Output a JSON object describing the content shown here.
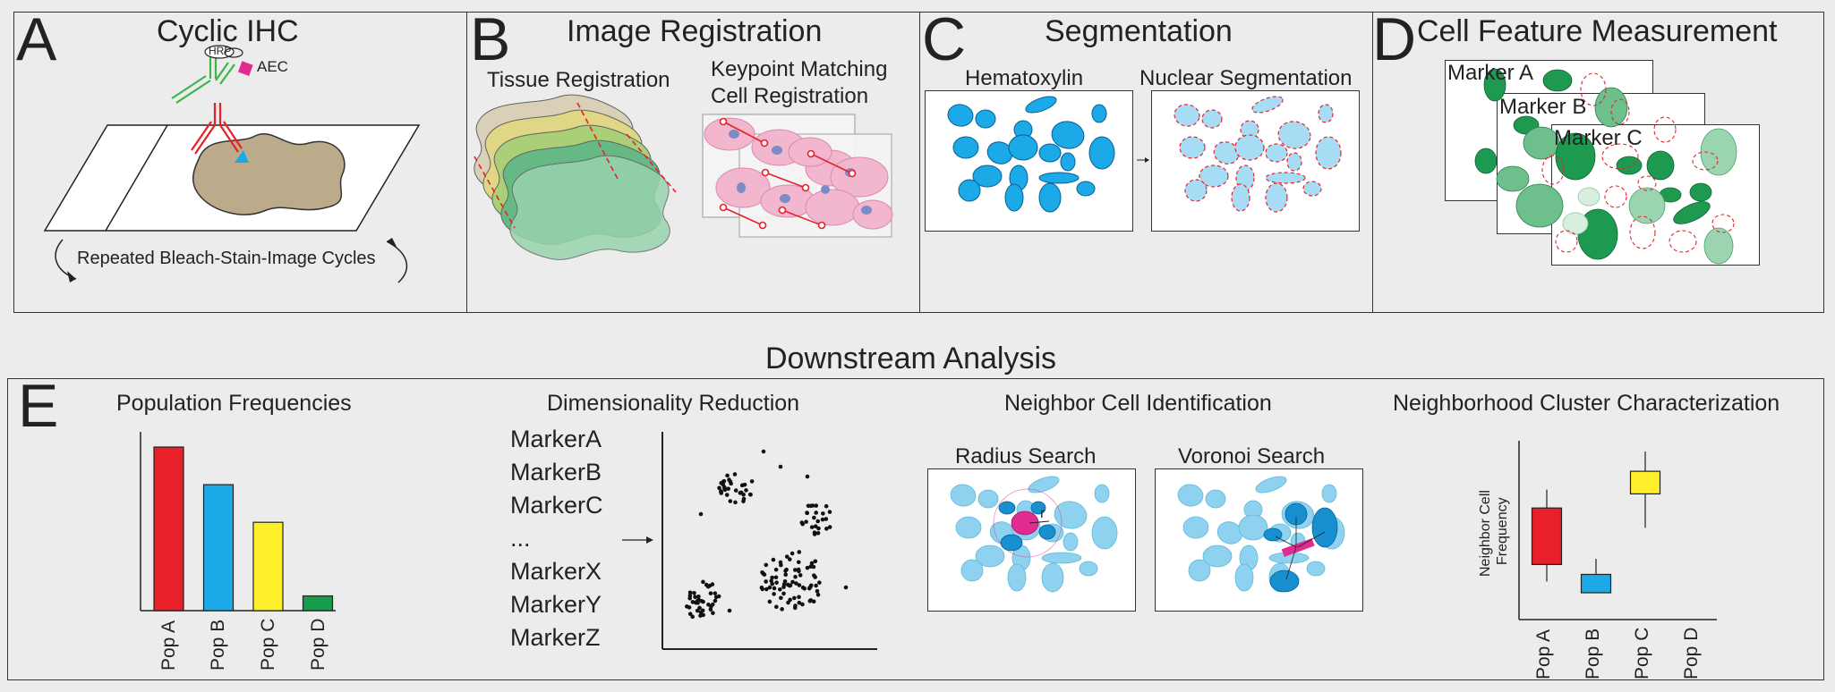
{
  "panel_a": {
    "letter": "A",
    "title": "Cyclic IHC",
    "hrp": "HRP",
    "aec": "AEC",
    "caption": "Repeated Bleach-Stain-Image Cycles"
  },
  "panel_b": {
    "letter": "B",
    "title": "Image Registration",
    "left_label": "Tissue Registration",
    "right_label_1": "Keypoint Matching",
    "right_label_2": "Cell Registration"
  },
  "panel_c": {
    "letter": "C",
    "title": "Segmentation",
    "left_label": "Hematoxylin",
    "right_label": "Nuclear Segmentation"
  },
  "panel_d": {
    "letter": "D",
    "title": "Cell Feature Measurement",
    "marker_a": "Marker A",
    "marker_b": "Marker B",
    "marker_c": "Marker C"
  },
  "downstream_title": "Downstream Analysis",
  "panel_e": {
    "letter": "E",
    "pop_freq": {
      "title": "Population Frequencies",
      "chart_data": {
        "type": "bar",
        "title": "Population Frequencies",
        "categories": [
          "Pop A",
          "Pop B",
          "Pop C",
          "Pop D"
        ],
        "values": [
          1.0,
          0.77,
          0.54,
          0.09
        ],
        "colors": [
          "#e8202a",
          "#1ba9e8",
          "#ffef2a",
          "#179c4b"
        ],
        "grid": false
      }
    },
    "dim_red": {
      "title": "Dimensionality Reduction",
      "markers": [
        "MarkerA",
        "MarkerB",
        "MarkerC",
        "...",
        "MarkerX",
        "MarkerY",
        "MarkerZ"
      ]
    },
    "neighbor": {
      "title": "Neighbor Cell Identification",
      "radius_label": "Radius Search",
      "voronoi_label": "Voronoi Search",
      "r_label": "r"
    },
    "cluster": {
      "title": "Neighborhood Cluster Characterization",
      "ylabel_1": "Neighbor Cell",
      "ylabel_2": "Frequency",
      "chart_data": {
        "type": "box",
        "categories": [
          "Pop A",
          "Pop B",
          "Pop C",
          "Pop D"
        ],
        "boxes": [
          {
            "whisker_low": 0.08,
            "q1": 0.2,
            "q3": 0.6,
            "whisker_high": 0.73
          },
          {
            "whisker_low": 0.0,
            "q1": 0.0,
            "q3": 0.13,
            "whisker_high": 0.24
          },
          {
            "whisker_low": 0.46,
            "q1": 0.7,
            "q3": 0.86,
            "whisker_high": 1.0
          },
          null
        ],
        "colors": [
          "#e8202a",
          "#1ba9e8",
          "#ffef2a",
          "#179c4b"
        ]
      }
    }
  }
}
